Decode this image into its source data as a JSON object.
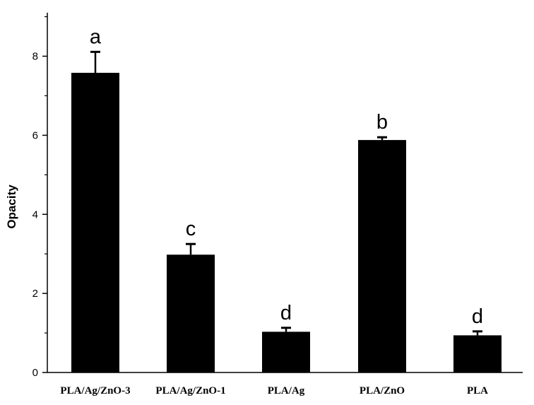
{
  "chart_data": {
    "type": "bar",
    "categories": [
      "PLA/Ag/ZnO-3",
      "PLA/Ag/ZnO-1",
      "PLA/Ag",
      "PLA/ZnO",
      "PLA"
    ],
    "values": [
      7.58,
      2.98,
      1.03,
      5.88,
      0.94
    ],
    "errors": [
      0.53,
      0.27,
      0.1,
      0.07,
      0.1
    ],
    "annotations": [
      "a",
      "c",
      "d",
      "b",
      "d"
    ],
    "ylabel": "Opacity",
    "xlabel": "",
    "ylim": [
      0,
      9.1
    ],
    "yticks": [
      0,
      2,
      4,
      6,
      8
    ],
    "minor_yticks": [
      1,
      3,
      5,
      7,
      9
    ],
    "bar_color": "#000000",
    "grid": false
  }
}
